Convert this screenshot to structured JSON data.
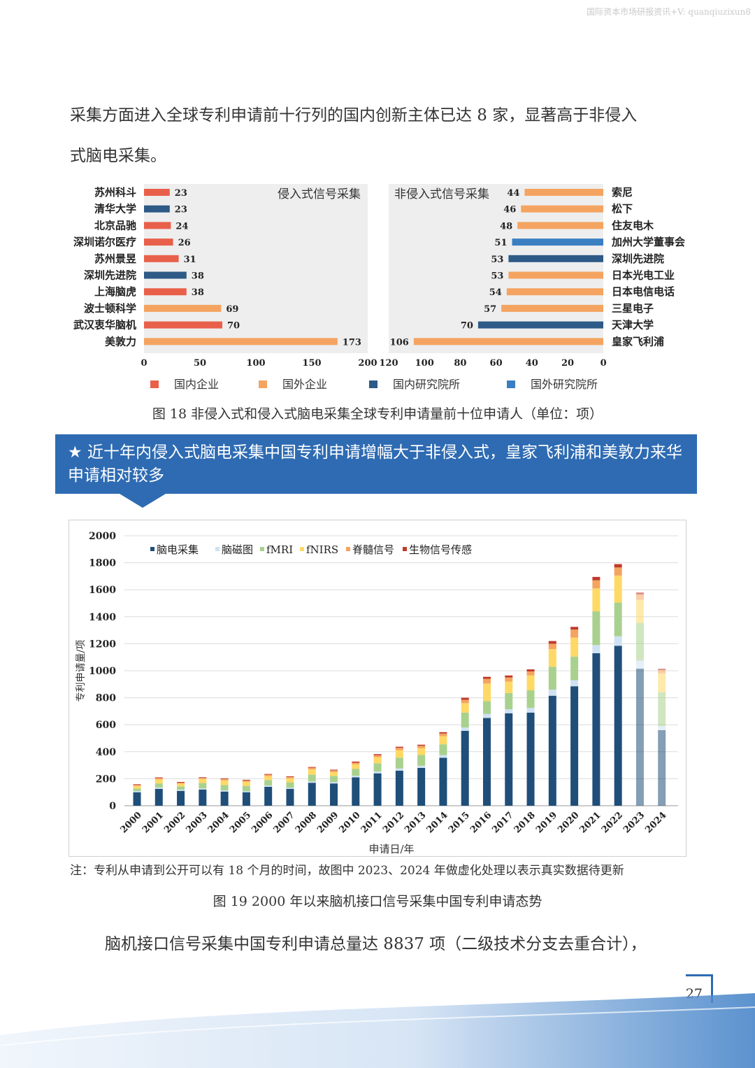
{
  "watermark": "国际资本市场研报资讯+V: quanqiuzixun8",
  "intro": {
    "line1": "采集方面进入全球专利申请前十行列的国内创新主体已达 8 家，显著高于非侵入",
    "line2": "式脑电采集。"
  },
  "colors": {
    "domestic_company": "#e9604a",
    "foreign_company": "#f4a460",
    "domestic_institute": "#2d5a86",
    "foreign_institute": "#3a7fc1"
  },
  "fig18": {
    "legend": [
      "国内企业",
      "国外企业",
      "国内研究院所",
      "国外研究院所"
    ],
    "caption": "图 18  非侵入式和侵入式脑电采集全球专利申请量前十位申请人（单位：项）"
  },
  "chart_data": [
    {
      "type": "bar",
      "orientation": "horizontal",
      "title": "侵入式信号采集",
      "categories": [
        "苏州科斗",
        "清华大学",
        "北京品驰",
        "深圳诺尔医疗",
        "苏州景昱",
        "深圳先进院",
        "上海脑虎",
        "波士顿科学",
        "武汉衷华脑机",
        "美敦力"
      ],
      "values": [
        23,
        23,
        24,
        26,
        31,
        38,
        38,
        69,
        70,
        173
      ],
      "groups": [
        "国内企业",
        "国内研究院所",
        "国内企业",
        "国内企业",
        "国内企业",
        "国内研究院所",
        "国内企业",
        "国外企业",
        "国内企业",
        "国外企业"
      ],
      "xlim": [
        0,
        200
      ],
      "xticks": [
        "0",
        "50",
        "100",
        "150",
        "200"
      ]
    },
    {
      "type": "bar",
      "orientation": "horizontal-reversed",
      "title": "非侵入式信号采集",
      "categories": [
        "索尼",
        "松下",
        "住友电木",
        "加州大学董事会",
        "深圳先进院",
        "日本光电工业",
        "日本电信电话",
        "三星电子",
        "天津大学",
        "皇家飞利浦"
      ],
      "values": [
        44,
        46,
        48,
        51,
        53,
        53,
        54,
        57,
        70,
        106
      ],
      "groups": [
        "国外企业",
        "国外企业",
        "国外企业",
        "国外研究院所",
        "国内研究院所",
        "国外企业",
        "国外企业",
        "国外企业",
        "国内研究院所",
        "国外企业"
      ],
      "xlim": [
        120,
        0
      ],
      "xticks": [
        "120",
        "100",
        "80",
        "60",
        "40",
        "20",
        "0"
      ]
    },
    {
      "type": "bar",
      "stacked": true,
      "title": "",
      "xlabel": "申请日/年",
      "ylabel": "专利申请量/项",
      "ylim": [
        0,
        2000
      ],
      "yticks": [
        "0",
        "200",
        "400",
        "600",
        "800",
        "1000",
        "1200",
        "1400",
        "1600",
        "1800",
        "2000"
      ],
      "categories": [
        "2000",
        "2001",
        "2002",
        "2003",
        "2004",
        "2005",
        "2006",
        "2007",
        "2008",
        "2009",
        "2010",
        "2011",
        "2012",
        "2013",
        "2014",
        "2015",
        "2016",
        "2017",
        "2018",
        "2019",
        "2020",
        "2021",
        "2022",
        "2023",
        "2024"
      ],
      "series": [
        {
          "name": "脑电采集",
          "color": "#1f4e79",
          "values": [
            100,
            125,
            110,
            120,
            105,
            100,
            140,
            125,
            170,
            165,
            210,
            240,
            260,
            280,
            355,
            555,
            650,
            685,
            690,
            815,
            885,
            1130,
            1185,
            1015,
            560
          ]
        },
        {
          "name": "脑磁图",
          "color": "#cfe2f3",
          "values": [
            8,
            10,
            8,
            8,
            8,
            7,
            10,
            8,
            10,
            10,
            12,
            14,
            16,
            16,
            20,
            25,
            30,
            30,
            35,
            45,
            45,
            60,
            70,
            60,
            30
          ]
        },
        {
          "name": "fMRI",
          "color": "#a9d18e",
          "values": [
            20,
            30,
            25,
            40,
            40,
            40,
            40,
            40,
            50,
            45,
            50,
            60,
            80,
            80,
            80,
            110,
            95,
            120,
            130,
            170,
            175,
            250,
            250,
            280,
            250
          ]
        },
        {
          "name": "fNIRS",
          "color": "#ffd966",
          "values": [
            18,
            30,
            20,
            30,
            35,
            30,
            30,
            30,
            40,
            30,
            35,
            45,
            55,
            50,
            60,
            70,
            130,
            85,
            110,
            130,
            140,
            170,
            200,
            170,
            140
          ]
        },
        {
          "name": "脊髓信号",
          "color": "#f4a460",
          "values": [
            8,
            10,
            8,
            8,
            10,
            10,
            10,
            10,
            12,
            12,
            12,
            15,
            18,
            18,
            20,
            25,
            35,
            30,
            30,
            40,
            60,
            60,
            60,
            40,
            25
          ]
        },
        {
          "name": "生物信号传感",
          "color": "#c0392b",
          "values": [
            5,
            5,
            5,
            5,
            5,
            5,
            5,
            5,
            5,
            5,
            8,
            8,
            8,
            8,
            10,
            15,
            15,
            15,
            15,
            20,
            20,
            25,
            25,
            15,
            10
          ]
        }
      ]
    }
  ],
  "banner": {
    "star": "★",
    "text": "近十年内侵入式脑电采集中国专利申请增幅大于非侵入式，皇家飞利浦和美敦力来华申请相对较多"
  },
  "fig19": {
    "note": "注：专利从申请到公开可以有 18 个月的时间，故图中 2023、2024 年做虚化处理以表示真实数据待更新",
    "caption": "图 19 2000 年以来脑机接口信号采集中国专利申请态势"
  },
  "outro": "脑机接口信号采集中国专利申请总量达 8837 项（二级技术分支去重合计），",
  "page_number": "27"
}
